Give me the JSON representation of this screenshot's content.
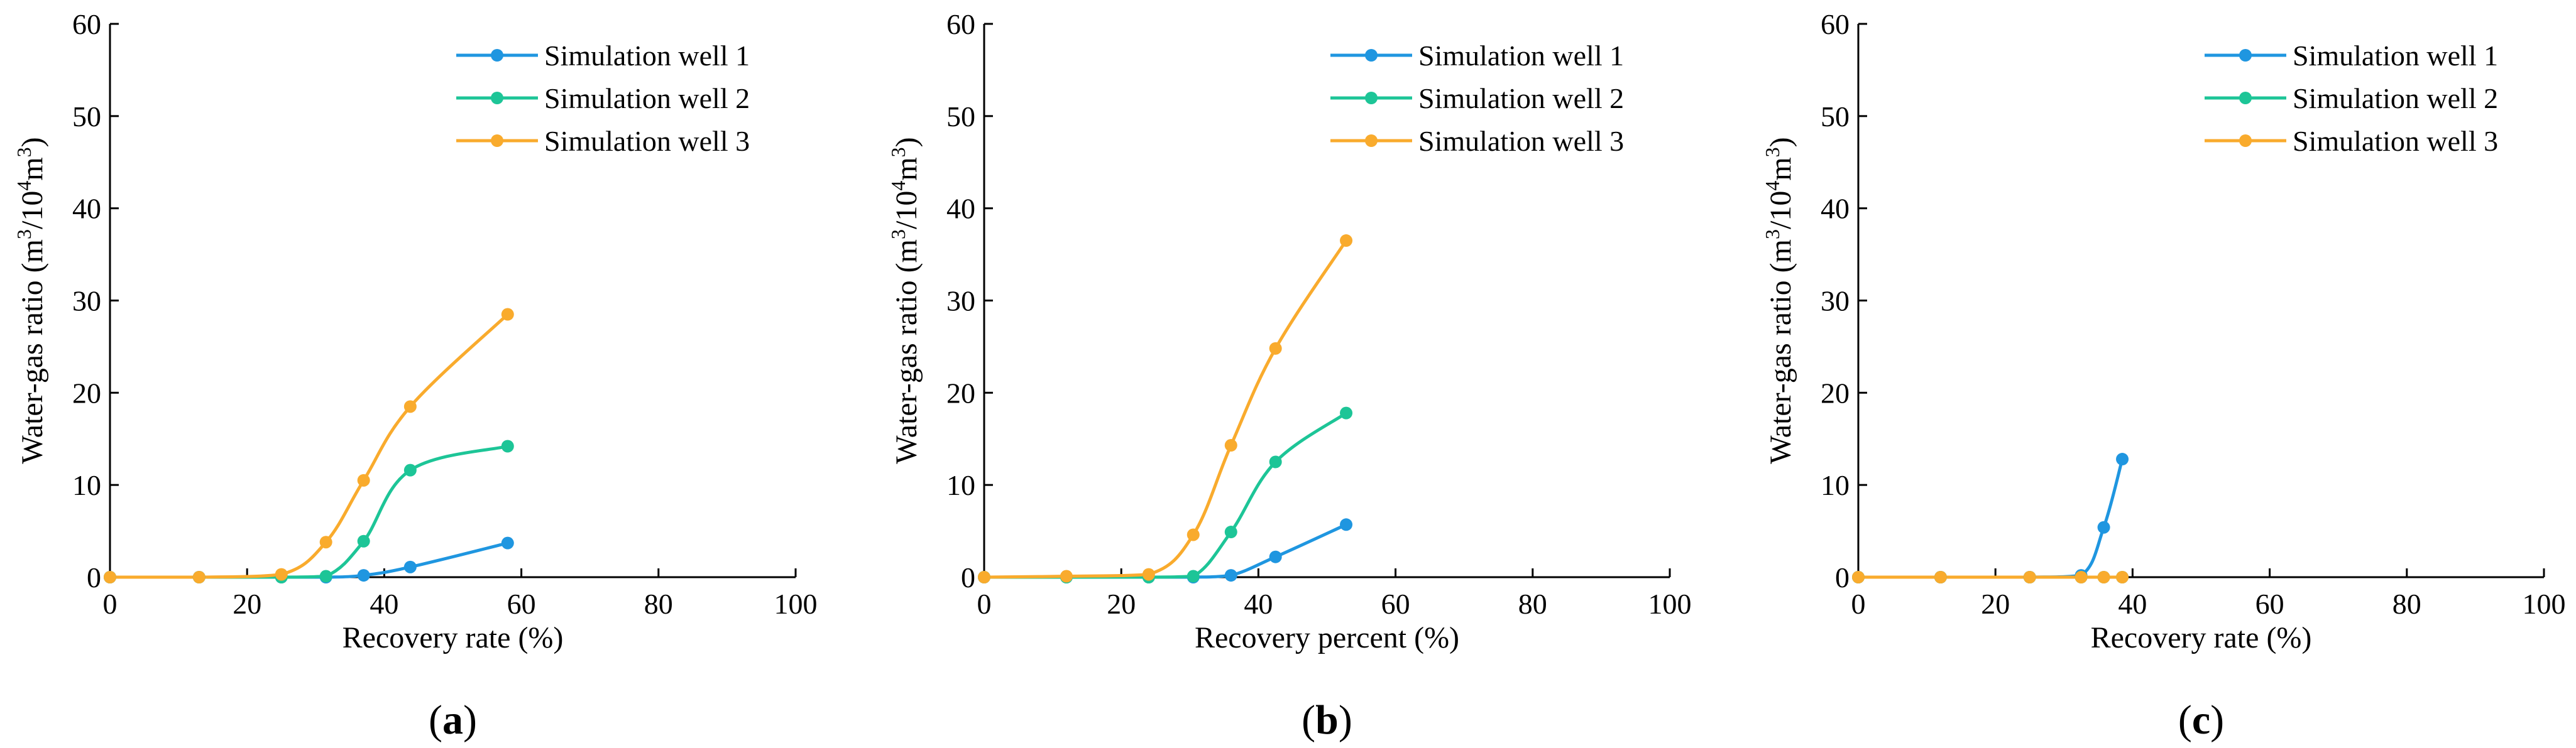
{
  "figure": {
    "colors": {
      "axis": "#000000",
      "series": [
        "#1f96e0",
        "#1dc597",
        "#f9ab2d"
      ]
    }
  },
  "chart_data": [
    {
      "type": "line",
      "panel_label": "(a)",
      "panel_letter": "a",
      "xlabel": "Recovery rate (%)",
      "ylabel": "Water-gas ratio (m3/104m3)",
      "ylabel_parts": [
        "Water-gas ratio (m",
        "3",
        "/10",
        "4",
        "m",
        "3",
        ")"
      ],
      "xlim": [
        0,
        100
      ],
      "ylim": [
        0,
        60
      ],
      "xticks": [
        0,
        20,
        40,
        60,
        80,
        100
      ],
      "yticks": [
        0,
        10,
        20,
        30,
        40,
        50,
        60
      ],
      "legend_position": "top-right",
      "series": [
        {
          "name": "Simulation well 1",
          "color": "#1f96e0",
          "x": [
            0,
            13,
            25,
            31.5,
            37,
            43.8,
            58
          ],
          "y": [
            0,
            0,
            0,
            0,
            0.2,
            1.1,
            3.7
          ]
        },
        {
          "name": "Simulation well 2",
          "color": "#1dc597",
          "x": [
            0,
            13,
            25,
            31.5,
            37,
            43.8,
            58
          ],
          "y": [
            0,
            0,
            0,
            0.1,
            3.9,
            11.6,
            14.2
          ]
        },
        {
          "name": "Simulation well 3",
          "color": "#f9ab2d",
          "x": [
            0,
            13,
            25,
            31.5,
            37,
            43.8,
            58
          ],
          "y": [
            0,
            0,
            0.3,
            3.8,
            10.5,
            18.5,
            28.5
          ]
        }
      ]
    },
    {
      "type": "line",
      "panel_label": "(b)",
      "panel_letter": "b",
      "xlabel": "Recovery percent (%)",
      "ylabel": "Water-gas ratio (m3/104m3)",
      "ylabel_parts": [
        "Water-gas ratio (m",
        "3",
        "/10",
        "4",
        "m",
        "3",
        ")"
      ],
      "xlim": [
        0,
        100
      ],
      "ylim": [
        0,
        60
      ],
      "xticks": [
        0,
        20,
        40,
        60,
        80,
        100
      ],
      "yticks": [
        0,
        10,
        20,
        30,
        40,
        50,
        60
      ],
      "legend_position": "top-right",
      "series": [
        {
          "name": "Simulation well 1",
          "color": "#1f96e0",
          "x": [
            0,
            12,
            24,
            30.5,
            36,
            42.5,
            52.8
          ],
          "y": [
            0,
            0,
            0,
            0,
            0.2,
            2.2,
            5.7
          ]
        },
        {
          "name": "Simulation well 2",
          "color": "#1dc597",
          "x": [
            0,
            12,
            24,
            30.5,
            36,
            42.5,
            52.8
          ],
          "y": [
            0,
            0,
            0,
            0.1,
            4.9,
            12.5,
            17.8
          ]
        },
        {
          "name": "Simulation well 3",
          "color": "#f9ab2d",
          "x": [
            0,
            12,
            24,
            30.5,
            36,
            42.5,
            52.8
          ],
          "y": [
            0,
            0.1,
            0.3,
            4.6,
            14.3,
            24.8,
            36.5
          ]
        }
      ]
    },
    {
      "type": "line",
      "panel_label": "(c)",
      "panel_letter": "c",
      "xlabel": "Recovery rate (%)",
      "ylabel": "Water-gas ratio (m3/104m3)",
      "ylabel_parts": [
        "Water-gas ratio (m",
        "3",
        "/10",
        "4",
        "m",
        "3",
        ")"
      ],
      "xlim": [
        0,
        100
      ],
      "ylim": [
        0,
        60
      ],
      "xticks": [
        0,
        20,
        40,
        60,
        80,
        100
      ],
      "yticks": [
        0,
        10,
        20,
        30,
        40,
        50,
        60
      ],
      "legend_position": "top-right",
      "series": [
        {
          "name": "Simulation well 1",
          "color": "#1f96e0",
          "x": [
            0,
            12,
            25,
            32.5,
            35.8,
            38.5
          ],
          "y": [
            0,
            0,
            0,
            0.2,
            5.4,
            12.8
          ]
        },
        {
          "name": "Simulation well 2",
          "color": "#1dc597",
          "x": [
            0,
            12,
            25,
            32.5,
            35.8,
            38.5
          ],
          "y": [
            0,
            0,
            0,
            0,
            0,
            0
          ]
        },
        {
          "name": "Simulation well 3",
          "color": "#f9ab2d",
          "x": [
            0,
            12,
            25,
            32.5,
            35.8,
            38.5
          ],
          "y": [
            0,
            0,
            0,
            0,
            0,
            0
          ]
        }
      ]
    }
  ]
}
